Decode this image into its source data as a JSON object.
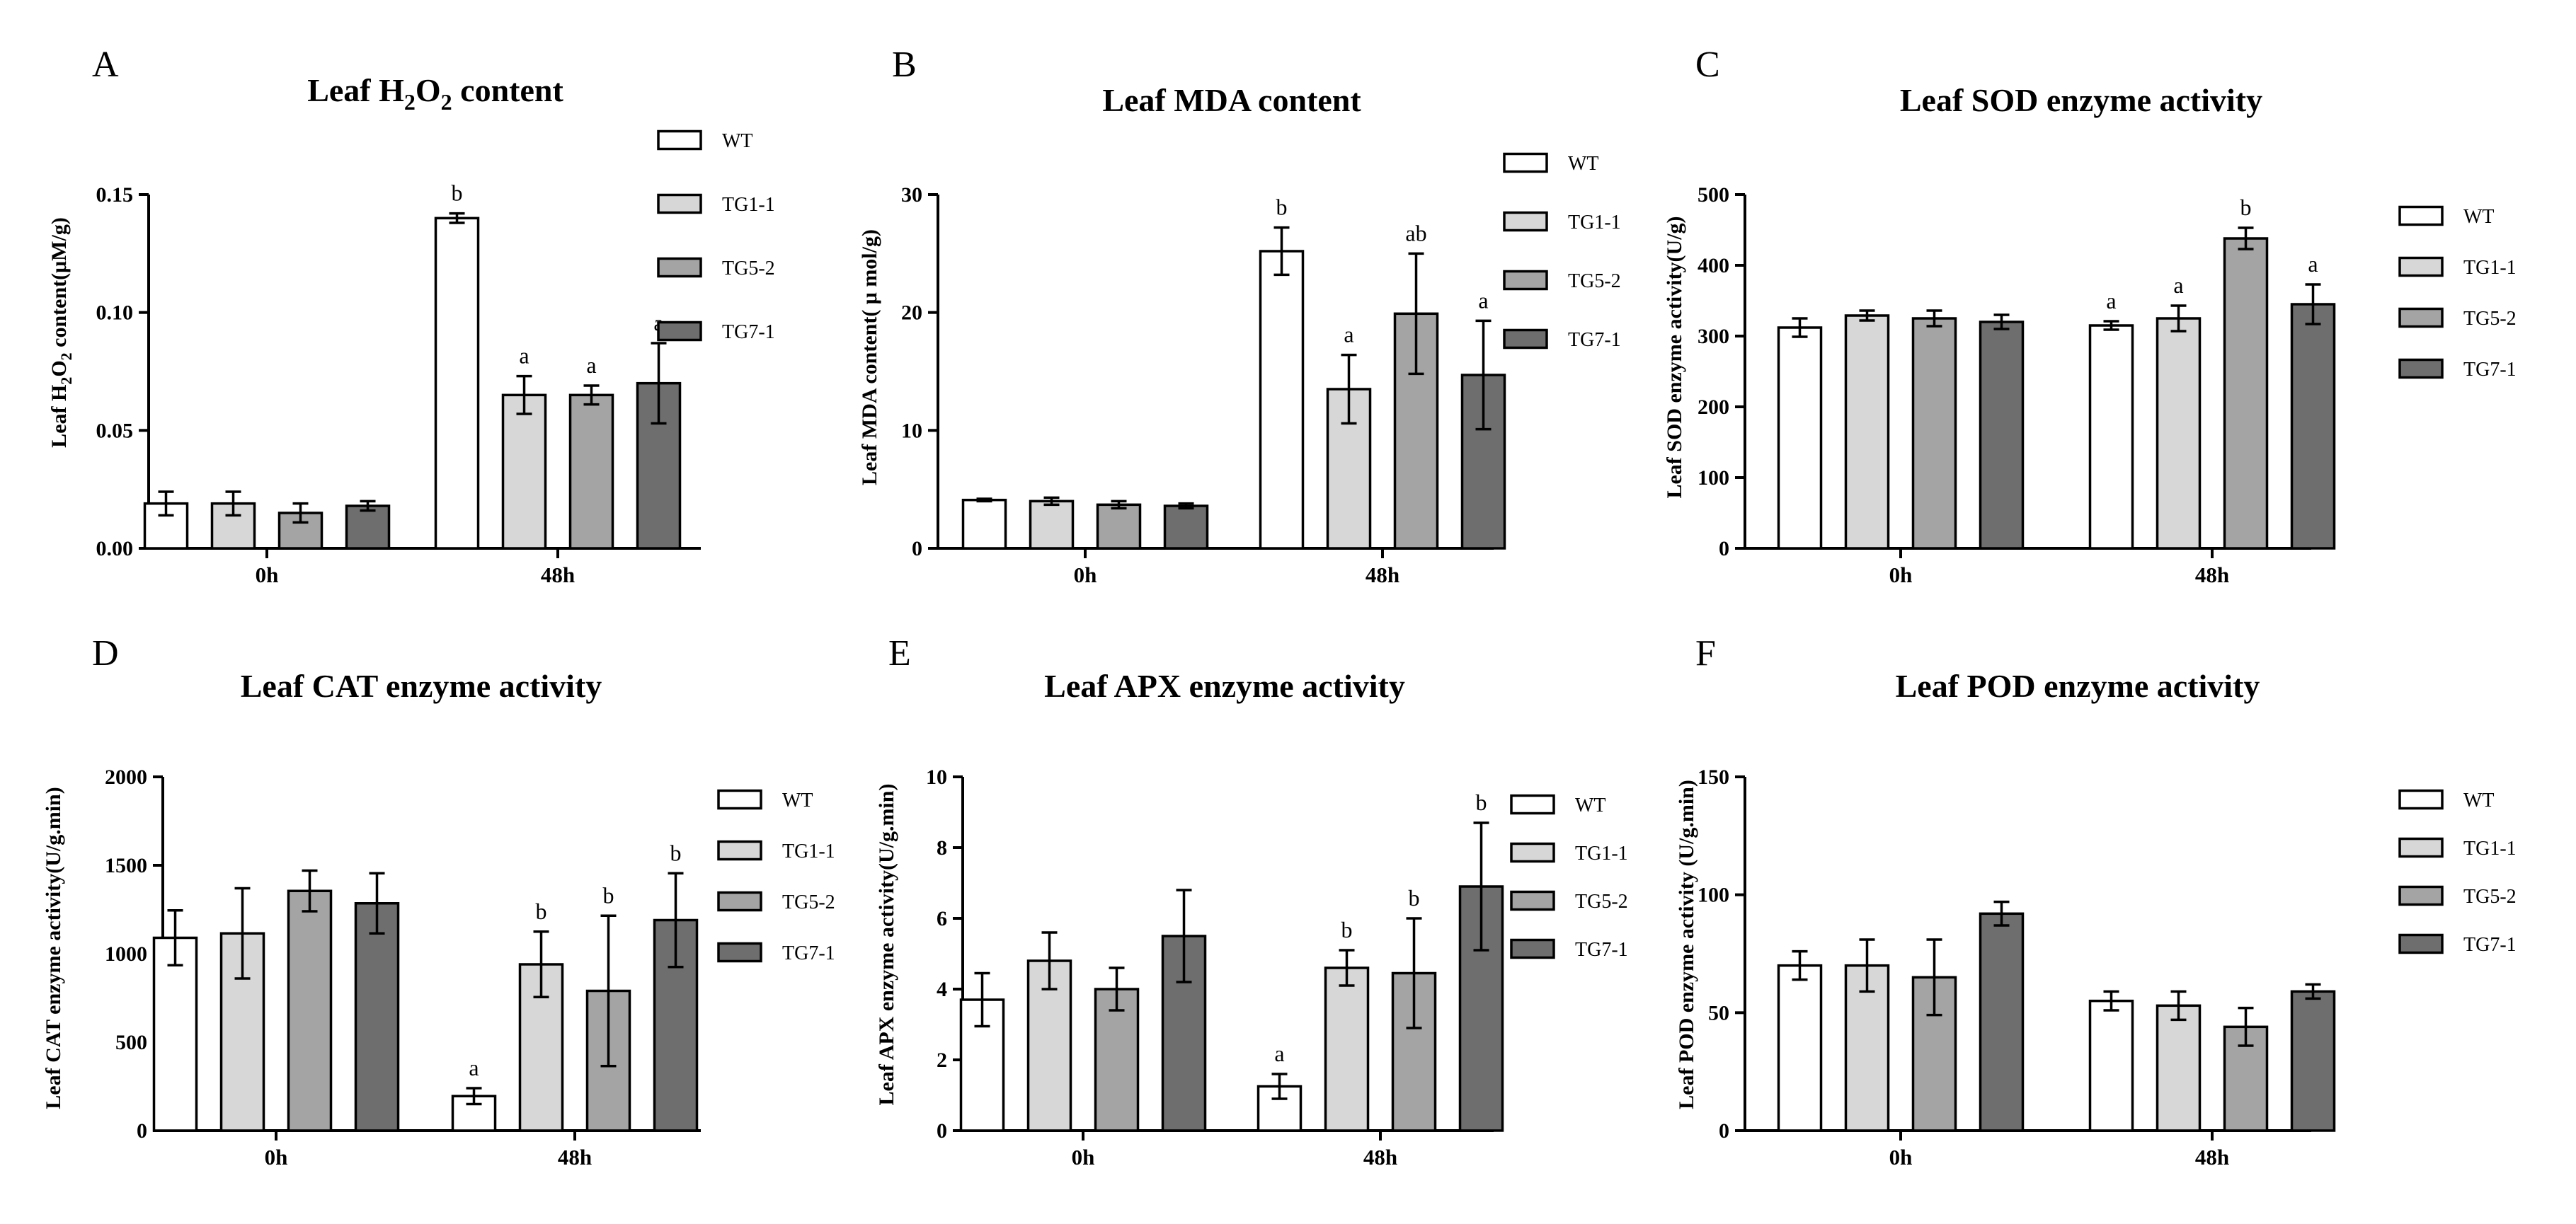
{
  "colors": {
    "WT": "#ffffff",
    "TG1-1": "#d7d7d7",
    "TG5-2": "#a4a4a4",
    "TG7-1": "#6e6e6e"
  },
  "chart_data": [
    {
      "panel": "A",
      "type": "bar",
      "title_main": "Leaf H",
      "title_sub1": "2",
      "title_mid": "O",
      "title_sub2": "2",
      "title_end": " content",
      "ylabel_main": "Leaf H",
      "ylabel_sub1": "2",
      "ylabel_mid": "O",
      "ylabel_sub2": "2",
      "ylabel_end": " content(μM/g)",
      "ylim": [
        0,
        0.15
      ],
      "yticks": [
        0,
        0.05,
        0.1,
        0.15
      ],
      "ytick_labels": [
        "0.00",
        "0.05",
        "0.10",
        "0.15"
      ],
      "categories": [
        "0h",
        "48h"
      ],
      "series": [
        {
          "name": "WT",
          "values": [
            0.019,
            0.14
          ],
          "errors": [
            0.005,
            0.002
          ],
          "sig": [
            "",
            "b"
          ]
        },
        {
          "name": "TG1-1",
          "values": [
            0.019,
            0.065
          ],
          "errors": [
            0.005,
            0.008
          ],
          "sig": [
            "",
            "a"
          ]
        },
        {
          "name": "TG5-2",
          "values": [
            0.015,
            0.065
          ],
          "errors": [
            0.004,
            0.004
          ],
          "sig": [
            "",
            "a"
          ]
        },
        {
          "name": "TG7-1",
          "values": [
            0.018,
            0.07
          ],
          "errors": [
            0.002,
            0.017
          ],
          "sig": [
            "",
            "a"
          ]
        }
      ]
    },
    {
      "panel": "B",
      "type": "bar",
      "title": "Leaf MDA content",
      "ylabel": "Leaf MDA content( μ mol/g)",
      "ylim": [
        0,
        30
      ],
      "yticks": [
        0,
        10,
        20,
        30
      ],
      "ytick_labels": [
        "0",
        "10",
        "20",
        "30"
      ],
      "categories": [
        "0h",
        "48h"
      ],
      "series": [
        {
          "name": "WT",
          "values": [
            4.1,
            25.2
          ],
          "errors": [
            0.1,
            2.0
          ],
          "sig": [
            "",
            "b"
          ]
        },
        {
          "name": "TG1-1",
          "values": [
            4.0,
            13.5
          ],
          "errors": [
            0.3,
            2.9
          ],
          "sig": [
            "",
            "a"
          ]
        },
        {
          "name": "TG5-2",
          "values": [
            3.7,
            19.9
          ],
          "errors": [
            0.3,
            5.1
          ],
          "sig": [
            "",
            "ab"
          ]
        },
        {
          "name": "TG7-1",
          "values": [
            3.6,
            14.7
          ],
          "errors": [
            0.2,
            4.6
          ],
          "sig": [
            "",
            "a"
          ]
        }
      ]
    },
    {
      "panel": "C",
      "type": "bar",
      "title": "Leaf SOD enzyme activity",
      "ylabel": "Leaf SOD enzyme activity(U/g)",
      "ylim": [
        0,
        500
      ],
      "yticks": [
        0,
        100,
        200,
        300,
        400,
        500
      ],
      "ytick_labels": [
        "0",
        "100",
        "200",
        "300",
        "400",
        "500"
      ],
      "categories": [
        "0h",
        "48h"
      ],
      "series": [
        {
          "name": "WT",
          "values": [
            312,
            315
          ],
          "errors": [
            13,
            6
          ],
          "sig": [
            "",
            "a"
          ]
        },
        {
          "name": "TG1-1",
          "values": [
            329,
            325
          ],
          "errors": [
            7,
            18
          ],
          "sig": [
            "",
            "a"
          ]
        },
        {
          "name": "TG5-2",
          "values": [
            325,
            438
          ],
          "errors": [
            11,
            15
          ],
          "sig": [
            "",
            "b"
          ]
        },
        {
          "name": "TG7-1",
          "values": [
            320,
            345
          ],
          "errors": [
            10,
            28
          ],
          "sig": [
            "",
            "a"
          ]
        }
      ]
    },
    {
      "panel": "D",
      "type": "bar",
      "title": "Leaf CAT enzyme activity",
      "ylabel": "Leaf CAT enzyme activity(U/g.min)",
      "ylim": [
        0,
        2000
      ],
      "yticks": [
        0,
        500,
        1000,
        1500,
        2000
      ],
      "ytick_labels": [
        "0",
        "500",
        "1000",
        "1500",
        "2000"
      ],
      "categories": [
        "0h",
        "48h"
      ],
      "series": [
        {
          "name": "WT",
          "values": [
            1090,
            195
          ],
          "errors": [
            155,
            45
          ],
          "sig": [
            "",
            "a"
          ]
        },
        {
          "name": "TG1-1",
          "values": [
            1115,
            940
          ],
          "errors": [
            255,
            185
          ],
          "sig": [
            "",
            "b"
          ]
        },
        {
          "name": "TG5-2",
          "values": [
            1355,
            790
          ],
          "errors": [
            115,
            425
          ],
          "sig": [
            "",
            "b"
          ]
        },
        {
          "name": "TG7-1",
          "values": [
            1285,
            1190
          ],
          "errors": [
            170,
            265
          ],
          "sig": [
            "",
            "b"
          ]
        }
      ]
    },
    {
      "panel": "E",
      "type": "bar",
      "title": "Leaf APX enzyme activity",
      "ylabel": "Leaf APX enzyme activity(U/g.min)",
      "ylim": [
        0,
        10
      ],
      "yticks": [
        0,
        2,
        4,
        6,
        8,
        10
      ],
      "ytick_labels": [
        "0",
        "2",
        "4",
        "6",
        "8",
        "10"
      ],
      "categories": [
        "0h",
        "48h"
      ],
      "series": [
        {
          "name": "WT",
          "values": [
            3.7,
            1.25
          ],
          "errors": [
            0.75,
            0.35
          ],
          "sig": [
            "",
            "a"
          ]
        },
        {
          "name": "TG1-1",
          "values": [
            4.8,
            4.6
          ],
          "errors": [
            0.8,
            0.5
          ],
          "sig": [
            "",
            "b"
          ]
        },
        {
          "name": "TG5-2",
          "values": [
            4.0,
            4.45
          ],
          "errors": [
            0.6,
            1.55
          ],
          "sig": [
            "",
            "b"
          ]
        },
        {
          "name": "TG7-1",
          "values": [
            5.5,
            6.9
          ],
          "errors": [
            1.3,
            1.8
          ],
          "sig": [
            "",
            "b"
          ]
        }
      ]
    },
    {
      "panel": "F",
      "type": "bar",
      "title": "Leaf POD enzyme activity",
      "ylabel": "Leaf POD enzyme activity (U/g.min)",
      "ylim": [
        0,
        150
      ],
      "yticks": [
        0,
        50,
        100,
        150
      ],
      "ytick_labels": [
        "0",
        "50",
        "100",
        "150"
      ],
      "categories": [
        "0h",
        "48h"
      ],
      "series": [
        {
          "name": "WT",
          "values": [
            70,
            55
          ],
          "errors": [
            6,
            4
          ],
          "sig": [
            "",
            ""
          ]
        },
        {
          "name": "TG1-1",
          "values": [
            70,
            53
          ],
          "errors": [
            11,
            6
          ],
          "sig": [
            "",
            ""
          ]
        },
        {
          "name": "TG5-2",
          "values": [
            65,
            44
          ],
          "errors": [
            16,
            8
          ],
          "sig": [
            "",
            ""
          ]
        },
        {
          "name": "TG7-1",
          "values": [
            92,
            59
          ],
          "errors": [
            5,
            3
          ],
          "sig": [
            "",
            ""
          ]
        }
      ]
    }
  ]
}
